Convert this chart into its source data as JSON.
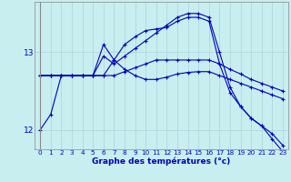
{
  "xlabel": "Graphe des températures (°c)",
  "bg_color": "#c8eef0",
  "grid_color": "#b0d8dc",
  "line_color": "#0000bb",
  "xlim": [
    -0.5,
    23.5
  ],
  "ylim": [
    11.75,
    13.65
  ],
  "yticks": [
    12,
    13
  ],
  "xtick_fontsize": 5.2,
  "ytick_fontsize": 6.5,
  "xlabel_fontsize": 6.5,
  "series": [
    [
      12.0,
      12.2,
      12.7,
      12.7,
      12.7,
      12.7,
      12.95,
      12.85,
      12.95,
      13.05,
      13.15,
      13.25,
      13.35,
      13.45,
      13.5,
      13.5,
      13.45,
      13.0,
      12.55,
      12.3,
      12.15,
      12.05,
      11.95,
      11.8
    ],
    [
      12.7,
      12.7,
      12.7,
      12.7,
      12.7,
      12.7,
      12.7,
      12.7,
      12.75,
      12.8,
      12.85,
      12.9,
      12.9,
      12.9,
      12.9,
      12.9,
      12.9,
      12.85,
      12.78,
      12.72,
      12.65,
      12.6,
      12.55,
      12.5
    ],
    [
      12.7,
      12.7,
      12.7,
      12.7,
      12.7,
      12.7,
      13.1,
      12.9,
      12.78,
      12.7,
      12.65,
      12.65,
      12.68,
      12.72,
      12.74,
      12.75,
      12.75,
      12.7,
      12.65,
      12.6,
      12.55,
      12.5,
      12.45,
      12.4
    ],
    [
      12.7,
      12.7,
      12.7,
      12.7,
      12.7,
      12.7,
      12.7,
      12.9,
      13.1,
      13.2,
      13.28,
      13.3,
      13.32,
      13.4,
      13.45,
      13.45,
      13.4,
      12.85,
      12.48,
      12.3,
      12.15,
      12.05,
      11.88,
      11.72
    ]
  ]
}
